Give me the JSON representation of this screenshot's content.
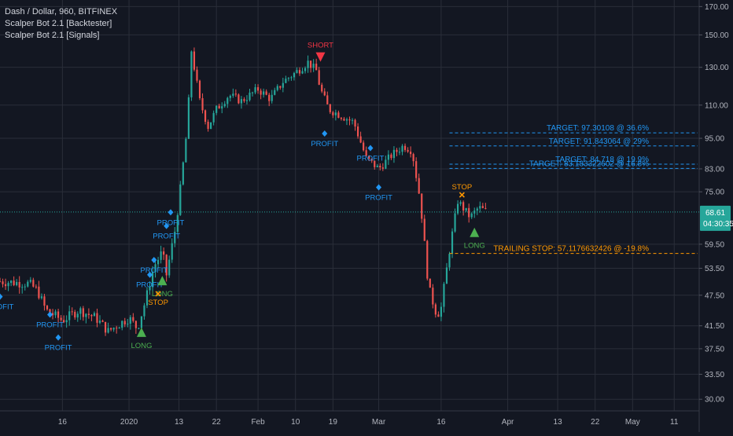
{
  "legend": {
    "symbol_line": "Dash / Dollar, 960, BITFINEX",
    "indicator_1": "Scalper Bot 2.1 [Backtester]",
    "indicator_2": "Scalper Bot 2.1 [Signals]"
  },
  "colors": {
    "background": "#131722",
    "grid": "#2a2e39",
    "up": "#26a69a",
    "down": "#ef5350",
    "axis_text": "#b2b5be",
    "target": "#2196f3",
    "stop": "#ff9800",
    "long": "#4caf50",
    "short": "#f23645",
    "price_tag": "#26a69a"
  },
  "price_axis": {
    "current_price": "68.61",
    "countdown": "04:30:35"
  },
  "chart_data": {
    "type": "candlestick",
    "y_scale": "log",
    "ylim": [
      28.5,
      175
    ],
    "y_ticks": [
      "170.00",
      "150.00",
      "130.00",
      "110.00",
      "95.00",
      "83.00",
      "75.00",
      "59.50",
      "53.50",
      "47.50",
      "41.50",
      "37.50",
      "33.50",
      "30.00"
    ],
    "x_ticks": [
      "16",
      "2020",
      "13",
      "22",
      "Feb",
      "10",
      "19",
      "Mar",
      "16",
      "Apr",
      "13",
      "22",
      "May",
      "11"
    ],
    "x_tick_dates": [
      "2019-12-16",
      "2020-01-01",
      "2020-01-13",
      "2020-01-22",
      "2020-02-01",
      "2020-02-10",
      "2020-02-19",
      "2020-03-01",
      "2020-03-16",
      "2020-04-01",
      "2020-04-13",
      "2020-04-22",
      "2020-05-01",
      "2020-05-11"
    ],
    "x_range": [
      "2019-12-01",
      "2020-05-17"
    ],
    "current_price": 68.61,
    "price_path": [
      [
        "2019-12-01",
        50.5
      ],
      [
        "2019-12-08",
        50.0
      ],
      [
        "2019-12-10",
        48.5
      ],
      [
        "2019-12-12",
        44.5
      ],
      [
        "2019-12-16",
        42.5
      ],
      [
        "2019-12-20",
        44.5
      ],
      [
        "2019-12-24",
        43.0
      ],
      [
        "2019-12-27",
        40.5
      ],
      [
        "2019-12-29",
        41.5
      ],
      [
        "2020-01-01",
        43.0
      ],
      [
        "2020-01-03",
        41.0
      ],
      [
        "2020-01-05",
        46.5
      ],
      [
        "2020-01-07",
        54.0
      ],
      [
        "2020-01-09",
        57.5
      ],
      [
        "2020-01-10",
        52.0
      ],
      [
        "2020-01-12",
        63.0
      ],
      [
        "2020-01-13",
        72.0
      ],
      [
        "2020-01-15",
        100.0
      ],
      [
        "2020-01-16",
        140.0
      ],
      [
        "2020-01-18",
        112.0
      ],
      [
        "2020-01-20",
        100.0
      ],
      [
        "2020-01-22",
        108.0
      ],
      [
        "2020-01-25",
        115.0
      ],
      [
        "2020-01-28",
        112.0
      ],
      [
        "2020-02-01",
        118.0
      ],
      [
        "2020-02-04",
        113.0
      ],
      [
        "2020-02-07",
        122.0
      ],
      [
        "2020-02-10",
        127.0
      ],
      [
        "2020-02-13",
        133.0
      ],
      [
        "2020-02-15",
        128.0
      ],
      [
        "2020-02-16",
        118.0
      ],
      [
        "2020-02-18",
        108.0
      ],
      [
        "2020-02-21",
        105.0
      ],
      [
        "2020-02-24",
        102.0
      ],
      [
        "2020-02-27",
        87.0
      ],
      [
        "2020-03-01",
        83.0
      ],
      [
        "2020-03-04",
        88.0
      ],
      [
        "2020-03-07",
        92.0
      ],
      [
        "2020-03-09",
        90.0
      ],
      [
        "2020-03-11",
        72.0
      ],
      [
        "2020-03-13",
        49.0
      ],
      [
        "2020-03-15",
        43.5
      ],
      [
        "2020-03-16",
        45.0
      ],
      [
        "2020-03-18",
        58.0
      ],
      [
        "2020-03-20",
        72.0
      ],
      [
        "2020-03-23",
        67.0
      ],
      [
        "2020-03-25",
        70.0
      ],
      [
        "2020-03-27",
        68.6
      ]
    ],
    "horizontal_levels": [
      {
        "label": "TARGET: 97.30108 @ 36.6%",
        "price": 97.30108,
        "kind": "target"
      },
      {
        "label": "TARGET: 91.843064 @ 29%",
        "price": 91.843064,
        "kind": "target"
      },
      {
        "label": "TARGET: 84.718 @ 19.9%",
        "price": 84.718,
        "kind": "target"
      },
      {
        "label": "TARGET: 83.183322602 @ 16.8%",
        "price": 83.183322602,
        "kind": "target"
      },
      {
        "label": "TRAILING STOP: 57.1176632426 @ -19.8%",
        "price": 57.1176632426,
        "kind": "stop"
      }
    ],
    "signals": [
      {
        "label": "PROFIT",
        "date": "2019-12-01",
        "price": 47.2,
        "kind": "profit"
      },
      {
        "label": "PROFIT",
        "date": "2019-12-13",
        "price": 43.6,
        "kind": "profit"
      },
      {
        "label": "PROFIT",
        "date": "2019-12-15",
        "price": 39.4,
        "kind": "profit"
      },
      {
        "label": "LONG",
        "date": "2020-01-04",
        "price": 40.2,
        "kind": "long"
      },
      {
        "label": "PROFIT",
        "date": "2020-01-06",
        "price": 52.0,
        "kind": "profit"
      },
      {
        "label": "PROFIT",
        "date": "2020-01-07",
        "price": 55.5,
        "kind": "profit"
      },
      {
        "label": "LONG",
        "date": "2020-01-09",
        "price": 50.5,
        "kind": "long"
      },
      {
        "label": "STOP",
        "date": "2020-01-08",
        "price": 47.8,
        "kind": "stop"
      },
      {
        "label": "PROFIT",
        "date": "2020-01-10",
        "price": 64.5,
        "kind": "profit"
      },
      {
        "label": "PROFIT",
        "date": "2020-01-11",
        "price": 68.5,
        "kind": "profit"
      },
      {
        "label": "SHORT",
        "date": "2020-02-16",
        "price": 136.0,
        "kind": "short"
      },
      {
        "label": "PROFIT",
        "date": "2020-02-17",
        "price": 97.0,
        "kind": "profit"
      },
      {
        "label": "PROFIT",
        "date": "2020-02-28",
        "price": 91.0,
        "kind": "profit"
      },
      {
        "label": "PROFIT",
        "date": "2020-03-01",
        "price": 76.5,
        "kind": "profit"
      },
      {
        "label": "STOP",
        "date": "2020-03-21",
        "price": 74.0,
        "kind": "stop"
      },
      {
        "label": "LONG",
        "date": "2020-03-24",
        "price": 62.5,
        "kind": "long"
      }
    ]
  }
}
